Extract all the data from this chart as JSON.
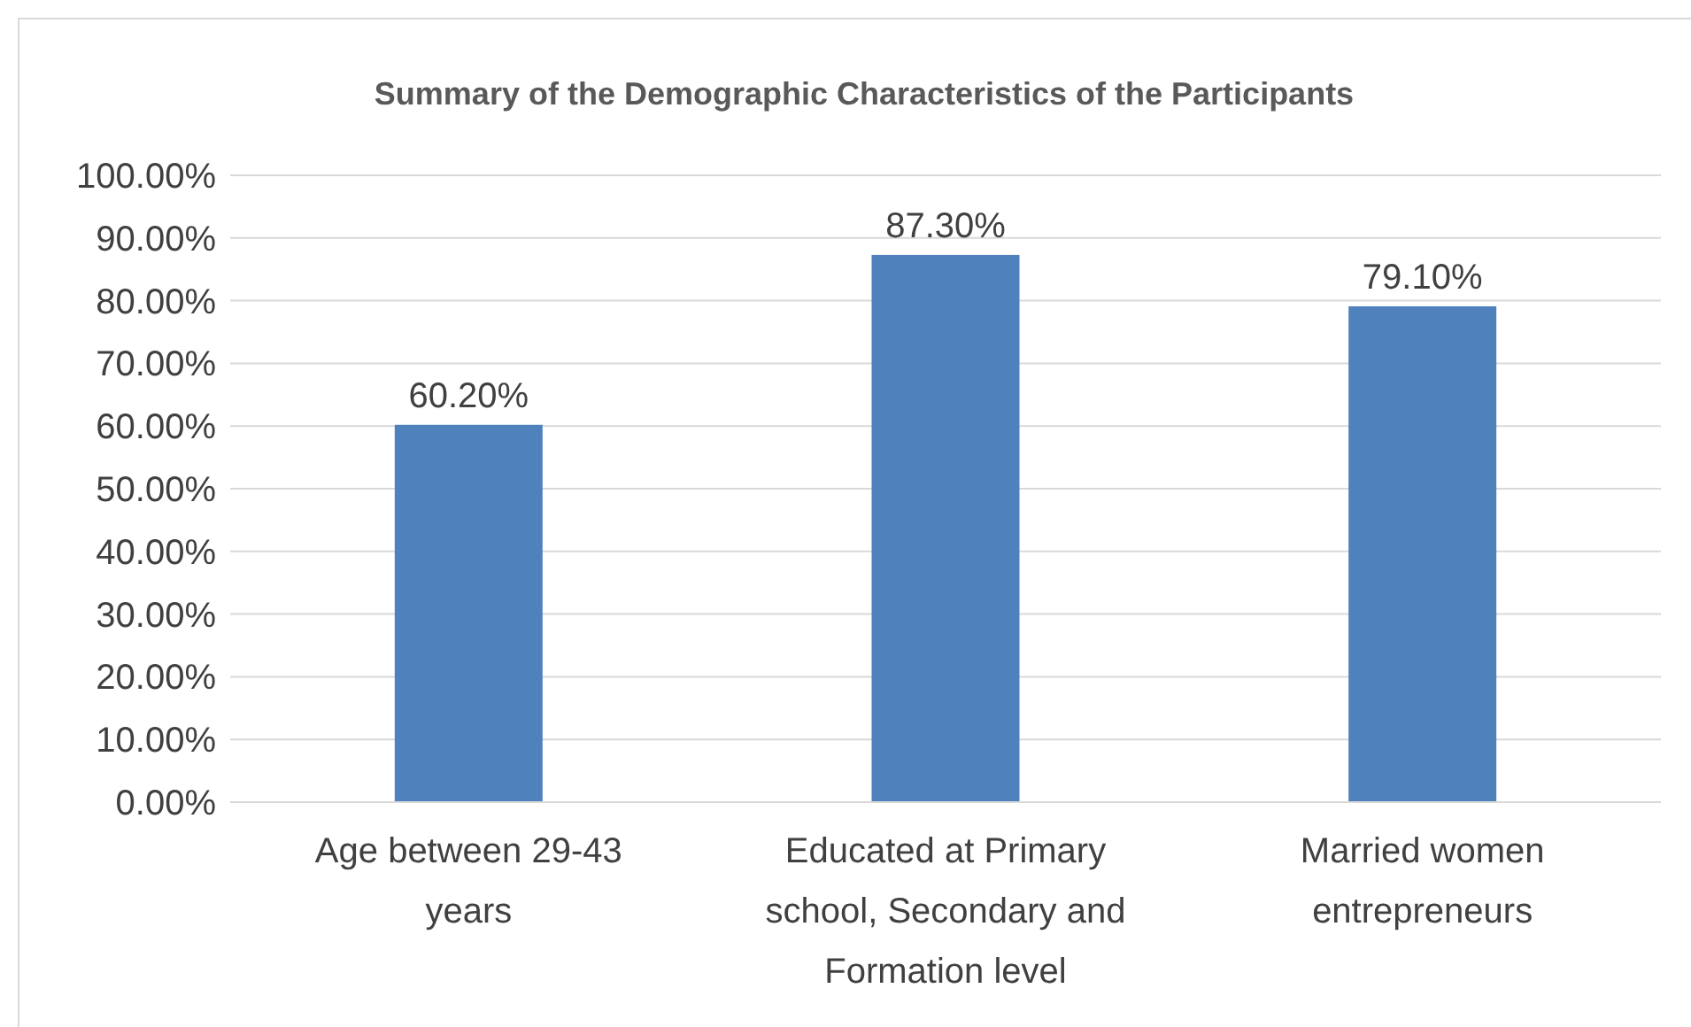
{
  "chart_data": {
    "type": "bar",
    "title": "Summary of the Demographic Characteristics of the Participants",
    "categories": [
      "Age between 29-43 years",
      "Educated at Primary school, Secondary and Formation level",
      "Married women entrepreneurs"
    ],
    "values": [
      60.2,
      87.3,
      79.1
    ],
    "color": "#4f81bd",
    "value_labels": [
      "60.20%",
      "87.30%",
      "79.10%"
    ],
    "ylim": [
      0,
      100
    ],
    "yticks": [
      {
        "value": 0,
        "label": "0.00%"
      },
      {
        "value": 10,
        "label": "10.00%"
      },
      {
        "value": 20,
        "label": "20.00%"
      },
      {
        "value": 30,
        "label": "30.00%"
      },
      {
        "value": 40,
        "label": "40.00%"
      },
      {
        "value": 50,
        "label": "50.00%"
      },
      {
        "value": 60,
        "label": "60.00%"
      },
      {
        "value": 70,
        "label": "70.00%"
      },
      {
        "value": 80,
        "label": "80.00%"
      },
      {
        "value": 90,
        "label": "90.00%"
      },
      {
        "value": 100,
        "label": "100.00%"
      }
    ],
    "grid": "y"
  }
}
